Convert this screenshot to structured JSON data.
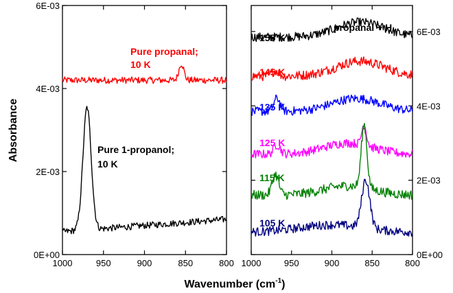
{
  "chart_data": [
    {
      "type": "line",
      "panel": "left",
      "xlabel": "Wavenumber (cm",
      "xlabel_sup": "-1",
      "xlabel_close": ")",
      "ylabel": "Absorbance",
      "xlim": [
        1000,
        800
      ],
      "ylim": [
        0,
        0.006
      ],
      "x_ticks": [
        1000,
        950,
        900,
        850,
        800
      ],
      "y_ticks": [
        0,
        0.002,
        0.004,
        0.006
      ],
      "y_tick_labels": [
        "0E+00",
        "2E-03",
        "4E-03",
        "6E-03"
      ],
      "annotations": [
        {
          "lines": [
            "Pure propanal;",
            "10 K"
          ],
          "color": "#ff0000"
        },
        {
          "lines": [
            "Pure 1-propanol;",
            "10 K"
          ],
          "color": "#000000"
        }
      ],
      "series": [
        {
          "color": "#ff0000",
          "baseline": 0.0042,
          "noise": 8e-05,
          "peaks": [
            {
              "x": 855,
              "height": 0.0004,
              "width": 3
            }
          ]
        },
        {
          "color": "#000000",
          "baseline": 0.00055,
          "noise": 8e-05,
          "peaks": [
            {
              "x": 970,
              "height": 0.00295,
              "width": 5
            }
          ],
          "tilt": 0.0003
        }
      ]
    },
    {
      "type": "line",
      "panel": "right",
      "legend_title": "propanal + H",
      "xlim": [
        1000,
        800
      ],
      "ylim": [
        0,
        0.0067
      ],
      "x_ticks": [
        1000,
        950,
        900,
        850,
        800
      ],
      "y_ticks": [
        0,
        0.002,
        0.004,
        0.006
      ],
      "y_tick_labels": [
        "0E+00",
        "2E-03",
        "4E-03",
        "6E-03"
      ],
      "series": [
        {
          "name": "155 K",
          "color": "#000000",
          "baseline": 0.00585,
          "noise": 0.00012,
          "peaks": [
            {
              "x": 865,
              "height": 0.0004,
              "width": 30
            }
          ]
        },
        {
          "name": "145 K",
          "color": "#ff0000",
          "baseline": 0.0048,
          "noise": 0.00013,
          "peaks": [
            {
              "x": 865,
              "height": 0.0004,
              "width": 30
            },
            {
              "x": 970,
              "height": 0.00015,
              "width": 4
            }
          ]
        },
        {
          "name": "135 K",
          "color": "#0000ff",
          "baseline": 0.00385,
          "noise": 0.00012,
          "peaks": [
            {
              "x": 870,
              "height": 0.00035,
              "width": 30
            },
            {
              "x": 968,
              "height": 0.00035,
              "width": 4
            }
          ]
        },
        {
          "name": "125 K",
          "color": "#ff00ff",
          "baseline": 0.0027,
          "noise": 0.00012,
          "peaks": [
            {
              "x": 880,
              "height": 0.0003,
              "width": 30
            },
            {
              "x": 860,
              "height": 0.00055,
              "width": 3
            },
            {
              "x": 968,
              "height": 0.00025,
              "width": 4
            }
          ]
        },
        {
          "name": "115 K",
          "color": "#008000",
          "baseline": 0.0016,
          "noise": 0.00013,
          "peaks": [
            {
              "x": 860,
              "height": 0.0017,
              "width": 3.5
            },
            {
              "x": 970,
              "height": 0.00055,
              "width": 4
            },
            {
              "x": 880,
              "height": 0.00025,
              "width": 30
            }
          ]
        },
        {
          "name": "105 K",
          "color": "#000080",
          "baseline": 0.0006,
          "noise": 0.00012,
          "peaks": [
            {
              "x": 858,
              "height": 0.0013,
              "width": 5
            },
            {
              "x": 900,
              "height": 0.0002,
              "width": 40
            }
          ]
        }
      ]
    }
  ]
}
